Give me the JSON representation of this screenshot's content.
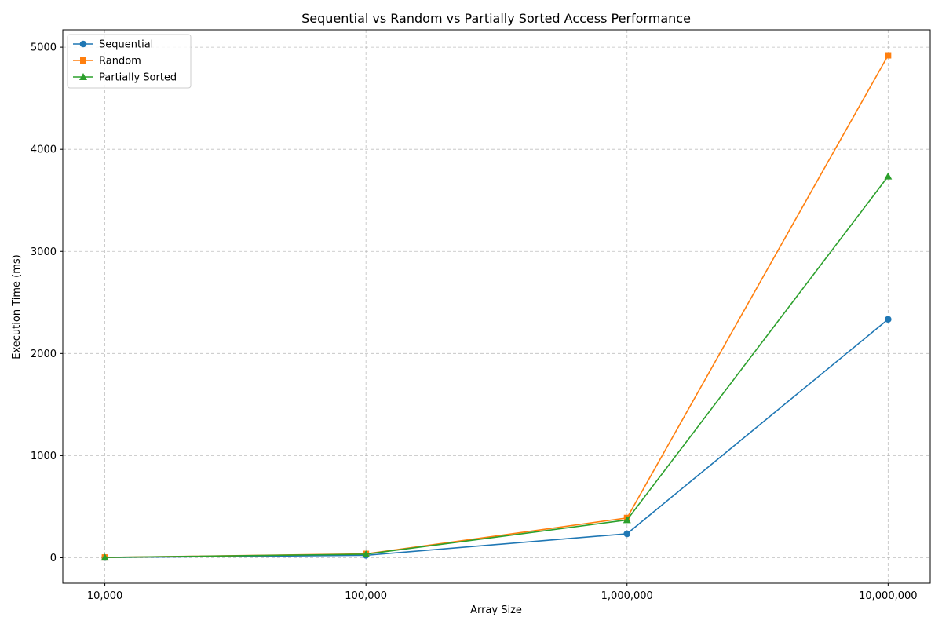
{
  "chart_data": {
    "type": "line",
    "title": "Sequential vs Random vs Partially Sorted Access Performance",
    "xlabel": "Array Size",
    "ylabel": "Execution Time (ms)",
    "x": [
      10000,
      100000,
      1000000,
      10000000
    ],
    "x_tick_labels": [
      "10,000",
      "100,000",
      "1,000,000",
      "10,000,000"
    ],
    "x_scale": "log",
    "xlim": [
      6900,
      14500000
    ],
    "ylim": [
      -250,
      5170
    ],
    "y_ticks": [
      0,
      1000,
      2000,
      3000,
      4000,
      5000
    ],
    "y_tick_labels": [
      "0",
      "1000",
      "2000",
      "3000",
      "4000",
      "5000"
    ],
    "grid": true,
    "legend_position": "top-left",
    "series": [
      {
        "name": "Sequential",
        "values": [
          2,
          24,
          235,
          2335
        ],
        "color": "#1f77b4",
        "marker": "circle"
      },
      {
        "name": "Random",
        "values": [
          3,
          38,
          390,
          4920
        ],
        "color": "#ff7f0e",
        "marker": "square"
      },
      {
        "name": "Partially Sorted",
        "values": [
          3,
          35,
          370,
          3735
        ],
        "color": "#2ca02c",
        "marker": "triangle"
      }
    ]
  }
}
